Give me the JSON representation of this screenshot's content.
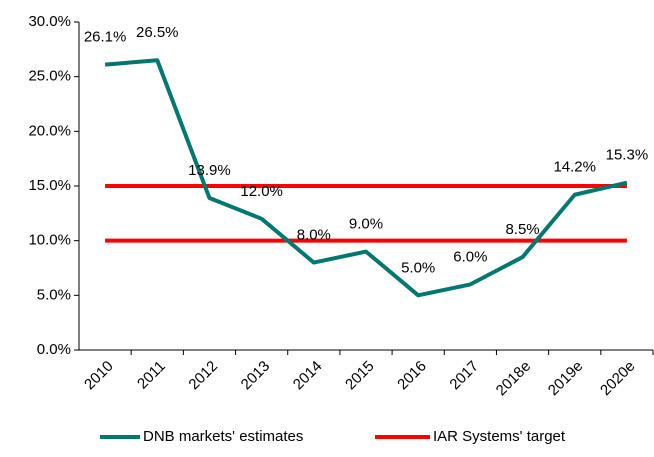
{
  "chart_data": {
    "type": "line",
    "categories": [
      "2010",
      "2011",
      "2012",
      "2013",
      "2014",
      "2015",
      "2016",
      "2017",
      "2018e",
      "2019e",
      "2020e"
    ],
    "series": [
      {
        "name": "DNB markets' estimates",
        "color": "#00786f",
        "values": [
          26.1,
          26.5,
          13.9,
          12.0,
          8.0,
          9.0,
          5.0,
          6.0,
          8.5,
          14.2,
          15.3
        ],
        "value_labels": [
          "26.1%",
          "26.5%",
          "13.9%",
          "12.0%",
          "8.0%",
          "9.0%",
          "5.0%",
          "6.0%",
          "8.5%",
          "14.2%",
          "15.3%"
        ]
      }
    ],
    "target": {
      "name": "IAR Systems' target",
      "color": "#ff0000",
      "values": [
        15,
        10
      ]
    },
    "ylim": [
      0,
      30
    ],
    "yticks": [
      {
        "value": 0,
        "label": "0.0%"
      },
      {
        "value": 5,
        "label": "5.0%"
      },
      {
        "value": 10,
        "label": "10.0%"
      },
      {
        "value": 15,
        "label": "15.0%"
      },
      {
        "value": 20,
        "label": "20.0%"
      },
      {
        "value": 25,
        "label": "25.0%"
      },
      {
        "value": 30,
        "label": "30.0%"
      }
    ],
    "grid": false,
    "legend": "bottom"
  }
}
